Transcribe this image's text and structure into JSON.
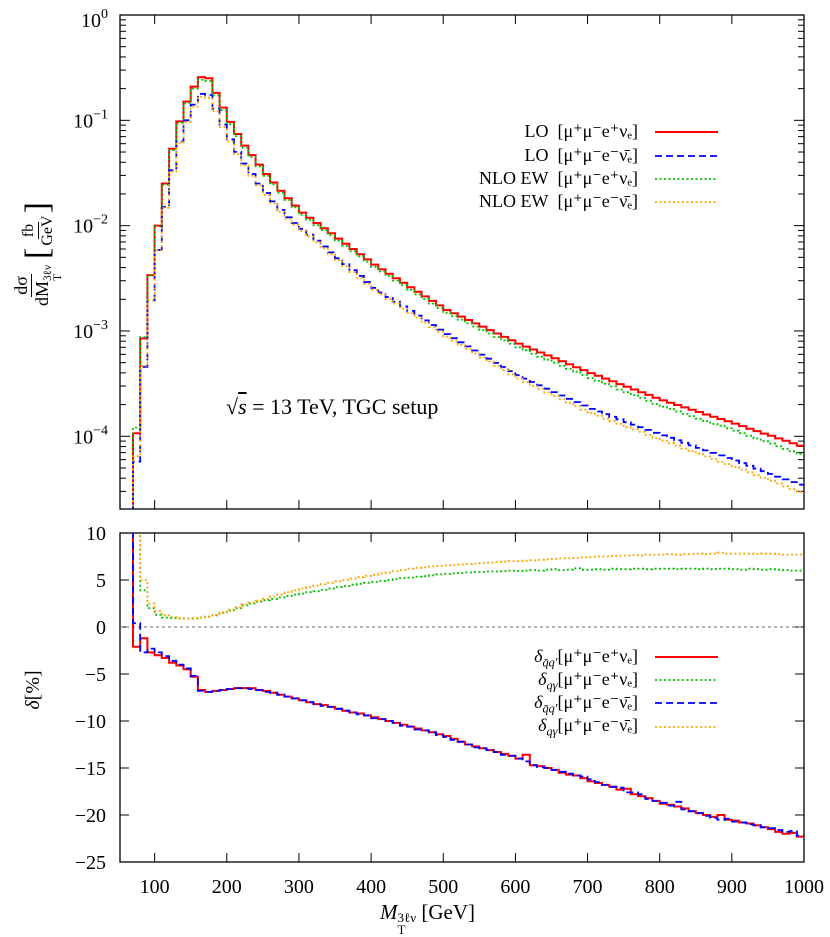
{
  "chart_data": [
    {
      "type": "line",
      "panel": "upper",
      "style": "histogram-steps",
      "ylabel": {
        "numerator": "dσ",
        "denominator_var": "dM",
        "denominator_sup": "3ℓν",
        "denominator_sub": "T",
        "unit_num": "fb",
        "unit_den": "GeV"
      },
      "yscale": "log",
      "ylim": [
        2.04e-05,
        1
      ],
      "xlim": [
        52,
        1000
      ],
      "yticks": [
        {
          "base": "10",
          "exp": "0",
          "value": 1
        },
        {
          "base": "10",
          "exp": "−1",
          "value": 0.1
        },
        {
          "base": "10",
          "exp": "−2",
          "value": 0.01
        },
        {
          "base": "10",
          "exp": "−3",
          "value": 0.001
        },
        {
          "base": "10",
          "exp": "−4",
          "value": 0.0001
        }
      ],
      "annotation": "√s = 13 TeV, TGC setup",
      "annotation_parts": {
        "sqrt": "√",
        "s": "s",
        "rest": " = 13 TeV, TGC setup"
      },
      "legend_position": "top-right",
      "bins": {
        "start": 70,
        "width": 10,
        "count": 93
      },
      "series": [
        {
          "name": "LO [μ⁺μ⁻e⁺νₑ]",
          "label": "LO",
          "process": "[μ⁺μ⁻e⁺νₑ]",
          "color": "#ff0000",
          "dash": "solid",
          "values": [
            0.000107,
            0.00085,
            0.00339,
            0.01,
            0.0251,
            0.0537,
            0.0977,
            0.151,
            0.209,
            0.257,
            0.251,
            0.182,
            0.132,
            0.0966,
            0.0741,
            0.0575,
            0.0468,
            0.038,
            0.0309,
            0.0257,
            0.0214,
            0.0182,
            0.0155,
            0.0133,
            0.0119,
            0.0106,
            0.00946,
            0.00845,
            0.00753,
            0.00673,
            0.006,
            0.00536,
            0.00478,
            0.00427,
            0.00386,
            0.0035,
            0.00317,
            0.00287,
            0.0026,
            0.00236,
            0.00213,
            0.00193,
            0.00175,
            0.00158,
            0.00147,
            0.00137,
            0.00127,
            0.00118,
            0.0011,
            0.00102,
            0.000946,
            0.000879,
            0.000817,
            0.000759,
            0.000711,
            0.000667,
            0.000625,
            0.000586,
            0.00055,
            0.000515,
            0.000483,
            0.000453,
            0.000425,
            0.000398,
            0.000375,
            0.000353,
            0.000333,
            0.000313,
            0.000295,
            0.000278,
            0.000262,
            0.000247,
            0.000232,
            0.000219,
            0.000208,
            0.000198,
            0.000188,
            0.000179,
            0.00017,
            0.000161,
            0.000153,
            0.000146,
            0.000139,
            0.000132,
            0.000125,
            0.000118,
            0.000112,
            0.000106,
            0.000101,
            9.55e-05,
            9.06e-05,
            8.57e-05,
            8.13e-05
          ]
        },
        {
          "name": "LO [μ⁺μ⁻e⁻ν̄ₑ]",
          "label": "LO",
          "process": "[μ⁺μ⁻e⁻ν̄ₑ]",
          "color": "#0000ff",
          "dash": "dashed",
          "values": [
            5.75e-05,
            0.000457,
            0.00195,
            0.00589,
            0.0151,
            0.0335,
            0.0631,
            0.1,
            0.141,
            0.178,
            0.174,
            0.129,
            0.0912,
            0.0661,
            0.0501,
            0.0389,
            0.0309,
            0.0251,
            0.0204,
            0.017,
            0.0141,
            0.012,
            0.0106,
            0.00933,
            0.0082,
            0.00721,
            0.00634,
            0.00557,
            0.0049,
            0.00431,
            0.00378,
            0.00333,
            0.00292,
            0.00257,
            0.00232,
            0.0021,
            0.0019,
            0.00171,
            0.00155,
            0.0014,
            0.00126,
            0.00114,
            0.00103,
            0.000933,
            0.000853,
            0.00078,
            0.000713,
            0.000652,
            0.000596,
            0.000545,
            0.000498,
            0.000455,
            0.000416,
            0.00038,
            0.000353,
            0.000328,
            0.000305,
            0.000283,
            0.000263,
            0.000244,
            0.000227,
            0.000211,
            0.000196,
            0.000182,
            0.000172,
            0.000162,
            0.000153,
            0.000145,
            0.000136,
            0.000129,
            0.000122,
            0.000115,
            0.000108,
            0.000102,
            9.68e-05,
            9.16e-05,
            8.67e-05,
            8.2e-05,
            7.76e-05,
            7.35e-05,
            6.95e-05,
            6.58e-05,
            6.22e-05,
            5.89e-05,
            5.55e-05,
            5.24e-05,
            4.93e-05,
            4.66e-05,
            4.39e-05,
            4.13e-05,
            3.9e-05,
            3.67e-05,
            3.47e-05
          ]
        },
        {
          "name": "NLO EW [μ⁺μ⁻e⁺νₑ]",
          "label": "NLO EW",
          "process": "[μ⁺μ⁻e⁺νₑ]",
          "color": "#00c000",
          "dash": "dotted",
          "values": [
            0.000121,
            0.000873,
            0.00337,
            0.00983,
            0.0245,
            0.0522,
            0.0946,
            0.146,
            0.2,
            0.242,
            0.236,
            0.172,
            0.125,
            0.0919,
            0.0708,
            0.0551,
            0.0449,
            0.0365,
            0.0297,
            0.0247,
            0.0205,
            0.0175,
            0.0149,
            0.0127,
            0.0114,
            0.0101,
            0.00905,
            0.00808,
            0.00719,
            0.00642,
            0.00572,
            0.00511,
            0.00456,
            0.00407,
            0.00367,
            0.00333,
            0.00301,
            0.00272,
            0.00246,
            0.00223,
            0.00201,
            0.00182,
            0.00165,
            0.00149,
            0.00138,
            0.00128,
            0.00118,
            0.0011,
            0.00102,
            0.000947,
            0.000876,
            0.000813,
            0.000754,
            0.000698,
            0.000657,
            0.000609,
            0.00057,
            0.000534,
            0.0005,
            0.000466,
            0.000437,
            0.00041,
            0.000383,
            0.000357,
            0.000336,
            0.000315,
            0.000297,
            0.000278,
            0.000262,
            0.000246,
            0.000231,
            0.000217,
            0.000203,
            0.000191,
            0.000182,
            0.000172,
            0.000163,
            0.000155,
            0.000147,
            0.000139,
            0.000131,
            0.000126,
            0.000119,
            0.000113,
            0.000107,
            0.000101,
            9.53e-05,
            8.99e-05,
            8.55e-05,
            8.05e-05,
            7.61e-05,
            7.21e-05,
            6.8e-05
          ]
        },
        {
          "name": "NLO EW [μ⁺μ⁻e⁻ν̄ₑ]",
          "label": "NLO EW",
          "process": "[μ⁺μ⁻e⁻ν̄ₑ]",
          "color": "#ffa500",
          "dash": "dotted",
          "values": [
            6.46e-05,
            0.000468,
            0.00195,
            0.00583,
            0.0148,
            0.0326,
            0.0612,
            0.0965,
            0.135,
            0.168,
            0.164,
            0.122,
            0.0865,
            0.063,
            0.0479,
            0.0373,
            0.0297,
            0.0241,
            0.0196,
            0.0164,
            0.0136,
            0.0116,
            0.0102,
            0.00898,
            0.00789,
            0.00694,
            0.0061,
            0.00536,
            0.00471,
            0.00414,
            0.00363,
            0.0032,
            0.0028,
            0.00246,
            0.00222,
            0.00201,
            0.00182,
            0.00163,
            0.00148,
            0.00134,
            0.0012,
            0.00109,
            0.000979,
            0.000885,
            0.000807,
            0.000737,
            0.000672,
            0.000613,
            0.00056,
            0.000511,
            0.000466,
            0.000425,
            0.000388,
            0.000353,
            0.000327,
            0.000303,
            0.000281,
            0.000261,
            0.000242,
            0.000224,
            0.000208,
            0.000193,
            0.000179,
            0.000166,
            0.000157,
            0.000147,
            0.000139,
            0.000131,
            0.000122,
            0.000116,
            0.00011,
            0.000103,
            9.63e-05,
            9.08e-05,
            8.59e-05,
            8.16e-05,
            7.66e-05,
            7.23e-05,
            6.83e-05,
            6.44e-05,
            6.08e-05,
            5.75e-05,
            5.44e-05,
            5.13e-05,
            4.83e-05,
            4.55e-05,
            4.27e-05,
            4.03e-05,
            3.79e-05,
            3.56e-05,
            3.35e-05,
            3.16e-05,
            2.97e-05
          ]
        }
      ]
    },
    {
      "type": "line",
      "panel": "lower",
      "style": "histogram-steps",
      "ylabel": {
        "symbol": "δ",
        "unit": "[%]"
      },
      "xlabel": {
        "var": "M",
        "sup": "3ℓν",
        "sub": "T",
        "unit": "[GeV]"
      },
      "ylim": [
        -25,
        10
      ],
      "xlim": [
        52,
        1000
      ],
      "yticks": [
        10,
        5,
        0,
        -5,
        -10,
        -15,
        -20,
        -25
      ],
      "ytick_labels": [
        "10",
        "5",
        "0",
        "−5",
        "−10",
        "−15",
        "−20",
        "−25"
      ],
      "xticks": [
        100,
        200,
        300,
        400,
        500,
        600,
        700,
        800,
        900,
        1000
      ],
      "xtick_labels": [
        "100",
        "200",
        "300",
        "400",
        "500",
        "600",
        "700",
        "800",
        "900",
        "1000"
      ],
      "reference_line": 0,
      "legend_position": "center-right",
      "bins": {
        "start": 70,
        "width": 10,
        "count": 93
      },
      "series": [
        {
          "name": "δ_q̄q′ [μ⁺μ⁻e⁺νₑ]",
          "symbol": "δ",
          "sub": "q̄q′",
          "process": "[μ⁺μ⁻e⁺νₑ]",
          "color": "#ff0000",
          "dash": "solid",
          "values": [
            -2.1,
            -1.2,
            -2.7,
            -3.0,
            -3.3,
            -3.8,
            -4.1,
            -4.5,
            -5.3,
            -6.7,
            -6.9,
            -6.8,
            -6.7,
            -6.6,
            -6.5,
            -6.5,
            -6.5,
            -6.7,
            -6.8,
            -7.0,
            -7.2,
            -7.4,
            -7.6,
            -7.8,
            -8.0,
            -8.2,
            -8.3,
            -8.5,
            -8.7,
            -8.9,
            -9.1,
            -9.2,
            -9.4,
            -9.6,
            -9.8,
            -10.0,
            -10.2,
            -10.4,
            -10.6,
            -10.8,
            -11.0,
            -11.2,
            -11.4,
            -11.6,
            -11.9,
            -12.2,
            -12.5,
            -12.7,
            -12.9,
            -13.1,
            -13.3,
            -13.5,
            -13.7,
            -14.0,
            -13.6,
            -14.7,
            -14.8,
            -15.0,
            -15.2,
            -15.5,
            -15.7,
            -15.8,
            -16.1,
            -16.4,
            -16.6,
            -16.8,
            -17.0,
            -17.3,
            -17.2,
            -17.8,
            -18.0,
            -18.2,
            -18.5,
            -18.8,
            -18.9,
            -19.1,
            -19.3,
            -19.6,
            -19.8,
            -20.0,
            -20.2,
            -20.0,
            -20.5,
            -20.6,
            -20.8,
            -20.9,
            -21.1,
            -21.3,
            -21.5,
            -21.8,
            -22.0,
            -21.9,
            -22.3
          ]
        },
        {
          "name": "δ_qγ [μ⁺μ⁻e⁺νₑ]",
          "symbol": "δ",
          "sub": "qγ",
          "process": "[μ⁺μ⁻e⁺νₑ]",
          "color": "#00c000",
          "dash": "dotted",
          "values": [
            12,
            3.9,
            2.0,
            1.3,
            1.0,
            0.95,
            0.9,
            0.9,
            0.9,
            1.0,
            1.1,
            1.25,
            1.5,
            1.75,
            2.0,
            2.3,
            2.5,
            2.7,
            2.85,
            3.0,
            3.15,
            3.3,
            3.45,
            3.55,
            3.7,
            3.8,
            3.95,
            4.1,
            4.25,
            4.35,
            4.5,
            4.6,
            4.7,
            4.8,
            4.9,
            5.0,
            5.1,
            5.2,
            5.25,
            5.35,
            5.4,
            5.5,
            5.6,
            5.65,
            5.7,
            5.75,
            5.8,
            5.85,
            5.85,
            5.9,
            5.9,
            5.95,
            6.0,
            5.95,
            6.0,
            6.05,
            6.0,
            6.1,
            6.15,
            6.05,
            6.1,
            6.25,
            6.1,
            6.1,
            6.15,
            6.1,
            6.2,
            6.15,
            6.15,
            6.2,
            6.2,
            6.15,
            6.2,
            6.2,
            6.2,
            6.15,
            6.2,
            6.2,
            6.15,
            6.2,
            6.15,
            6.2,
            6.2,
            6.15,
            6.1,
            6.2,
            6.15,
            6.1,
            6.15,
            6.1,
            6.05,
            6.0,
            6.0
          ]
        },
        {
          "name": "δ_q̄q′ [μ⁺μ⁻e⁻ν̄ₑ]",
          "symbol": "δ",
          "sub": "q̄q′",
          "process": "[μ⁺μ⁻e⁻ν̄ₑ]",
          "color": "#0000ff",
          "dash": "dashed",
          "values": [
            0.4,
            -2.7,
            -2.3,
            -2.7,
            -3.1,
            -3.6,
            -4.0,
            -4.4,
            -5.2,
            -6.8,
            -6.9,
            -6.8,
            -6.7,
            -6.6,
            -6.5,
            -6.5,
            -6.6,
            -6.7,
            -6.9,
            -7.0,
            -7.2,
            -7.4,
            -7.6,
            -7.8,
            -8.0,
            -8.2,
            -8.4,
            -8.5,
            -8.7,
            -8.9,
            -9.1,
            -9.3,
            -9.4,
            -9.7,
            -9.8,
            -10.0,
            -10.2,
            -10.5,
            -10.6,
            -10.9,
            -11.0,
            -11.2,
            -11.5,
            -11.7,
            -12.0,
            -12.2,
            -12.5,
            -12.8,
            -12.9,
            -13.1,
            -13.3,
            -13.6,
            -13.7,
            -14.0,
            -14.3,
            -14.7,
            -14.9,
            -15.0,
            -15.2,
            -15.4,
            -15.6,
            -15.8,
            -15.9,
            -16.2,
            -16.5,
            -16.8,
            -17.0,
            -17.1,
            -17.6,
            -17.6,
            -17.8,
            -18.3,
            -18.5,
            -18.7,
            -19.0,
            -18.6,
            -19.4,
            -19.6,
            -19.8,
            -20.1,
            -20.3,
            -20.5,
            -20.4,
            -20.7,
            -20.8,
            -21.0,
            -21.1,
            -21.3,
            -21.4,
            -21.6,
            -21.8,
            -21.7,
            -22.2
          ]
        },
        {
          "name": "δ_qγ [μ⁺μ⁻e⁻ν̄ₑ]",
          "symbol": "δ",
          "sub": "qγ",
          "process": "[μ⁺μ⁻e⁻ν̄ₑ]",
          "color": "#ffa500",
          "dash": "dotted",
          "values": [
            12,
            5.0,
            2.5,
            1.7,
            1.25,
            1.05,
            0.95,
            0.9,
            0.95,
            1.0,
            1.1,
            1.3,
            1.55,
            1.85,
            2.1,
            2.4,
            2.6,
            2.8,
            3.0,
            3.25,
            3.45,
            3.7,
            3.9,
            4.1,
            4.25,
            4.4,
            4.55,
            4.7,
            4.85,
            5.0,
            5.15,
            5.3,
            5.45,
            5.55,
            5.7,
            5.8,
            5.95,
            6.05,
            6.2,
            6.3,
            6.35,
            6.45,
            6.5,
            6.55,
            6.6,
            6.65,
            6.7,
            6.75,
            6.8,
            6.85,
            6.9,
            6.95,
            7.0,
            7.0,
            7.05,
            7.1,
            7.15,
            7.2,
            7.25,
            7.3,
            7.3,
            7.35,
            7.4,
            7.45,
            7.5,
            7.5,
            7.55,
            7.6,
            7.6,
            7.65,
            7.6,
            7.7,
            7.7,
            7.7,
            7.75,
            7.7,
            7.75,
            7.75,
            7.8,
            7.75,
            7.8,
            7.9,
            7.8,
            7.8,
            7.8,
            7.8,
            7.75,
            7.8,
            7.8,
            7.75,
            7.7,
            7.7,
            7.7
          ]
        }
      ]
    }
  ]
}
